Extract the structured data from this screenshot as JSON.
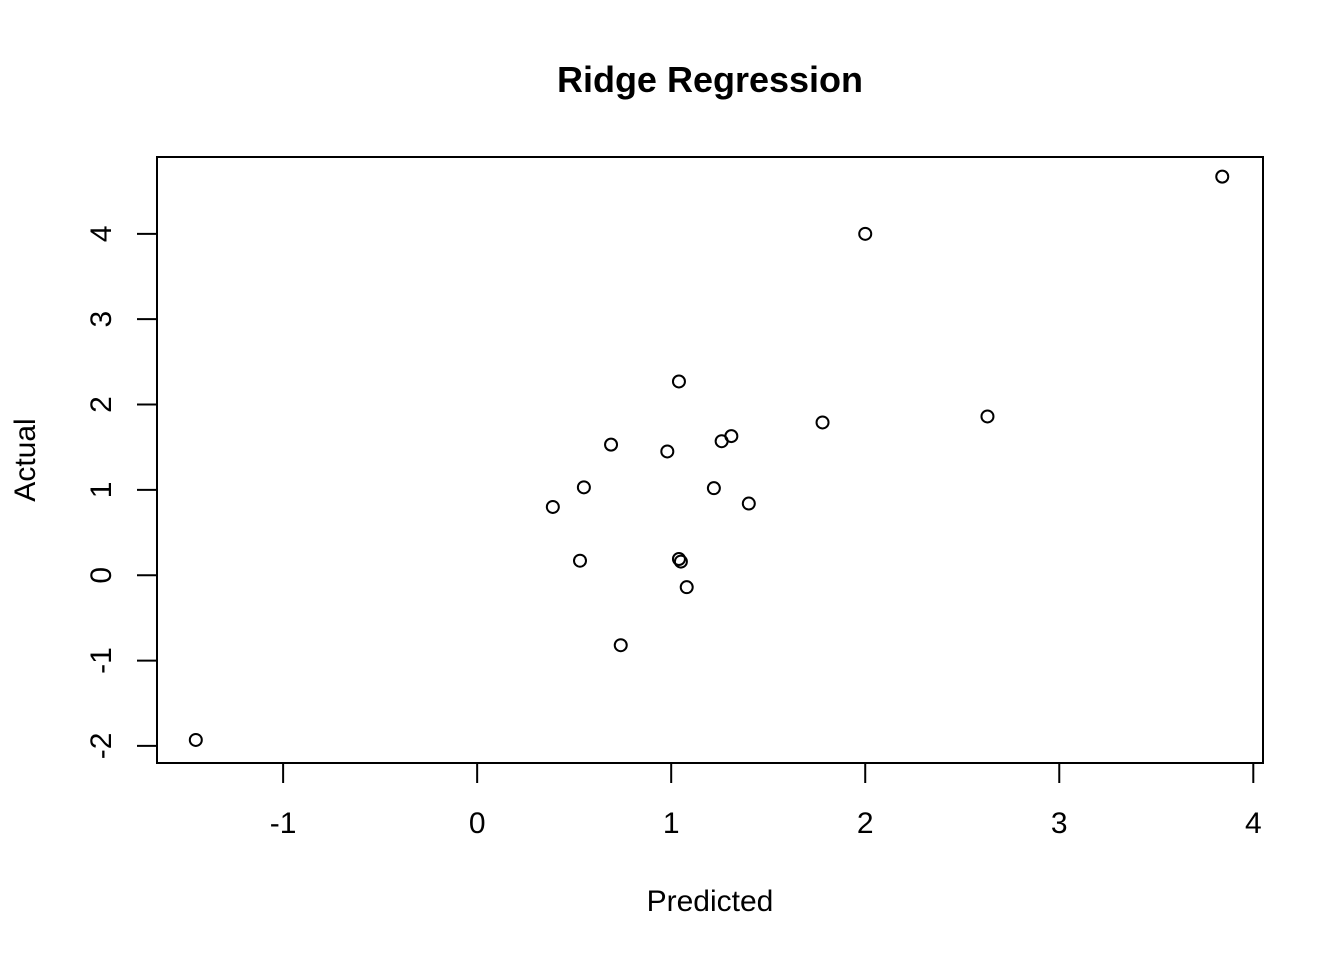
{
  "chart_data": {
    "type": "scatter",
    "title": "Ridge Regression",
    "xlabel": "Predicted",
    "ylabel": "Actual",
    "xlim": [
      -1.65,
      4.05
    ],
    "ylim": [
      -2.2,
      4.9
    ],
    "x_ticks": [
      -1,
      0,
      1,
      2,
      3,
      4
    ],
    "y_ticks": [
      -2,
      -1,
      0,
      1,
      2,
      3,
      4
    ],
    "x_tick_labels": [
      "-1",
      "0",
      "1",
      "2",
      "3",
      "4"
    ],
    "y_tick_labels": [
      "-2",
      "-1",
      "0",
      "1",
      "2",
      "3",
      "4"
    ],
    "grid": false,
    "marker": "open-circle",
    "marker_color": "#000000",
    "points": [
      {
        "x": -1.45,
        "y": -1.93
      },
      {
        "x": 0.39,
        "y": 0.8
      },
      {
        "x": 0.53,
        "y": 0.17
      },
      {
        "x": 0.55,
        "y": 1.03
      },
      {
        "x": 0.69,
        "y": 1.53
      },
      {
        "x": 0.74,
        "y": -0.82
      },
      {
        "x": 0.98,
        "y": 1.45
      },
      {
        "x": 1.04,
        "y": 2.27
      },
      {
        "x": 1.04,
        "y": 0.19
      },
      {
        "x": 1.05,
        "y": 0.16
      },
      {
        "x": 1.08,
        "y": -0.14
      },
      {
        "x": 1.22,
        "y": 1.02
      },
      {
        "x": 1.26,
        "y": 1.57
      },
      {
        "x": 1.31,
        "y": 1.63
      },
      {
        "x": 1.4,
        "y": 0.84
      },
      {
        "x": 1.78,
        "y": 1.79
      },
      {
        "x": 2.0,
        "y": 4.0
      },
      {
        "x": 2.63,
        "y": 1.86
      },
      {
        "x": 3.84,
        "y": 4.67
      }
    ]
  }
}
